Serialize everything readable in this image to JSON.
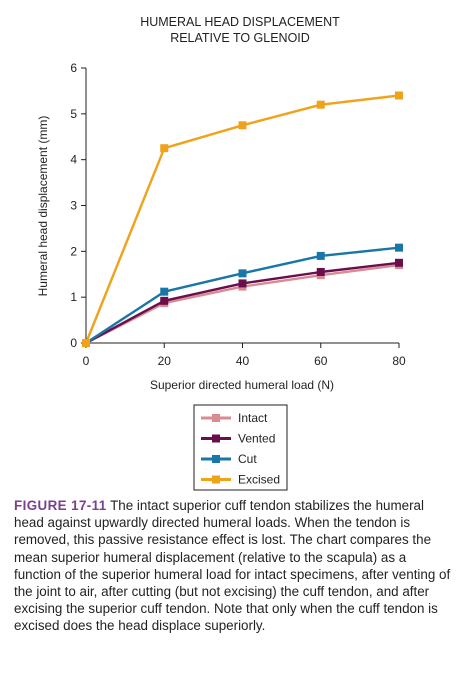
{
  "chart_data": {
    "type": "line",
    "title_lines": [
      "HUMERAL HEAD DISPLACEMENT",
      "RELATIVE TO GLENOID"
    ],
    "xlabel": "Superior directed humeral load (N)",
    "ylabel": "Humeral head displacement (mm)",
    "xlim": [
      0,
      80
    ],
    "ylim": [
      0,
      6
    ],
    "xticks": [
      "0",
      "20",
      "40",
      "60",
      "80"
    ],
    "yticks": [
      "0",
      "1",
      "2",
      "3",
      "4",
      "5",
      "6"
    ],
    "x": [
      0,
      20,
      40,
      60,
      80
    ],
    "legend_position": "bottom-center",
    "grid": false,
    "series": [
      {
        "name": "Intact",
        "color": "#d98a93",
        "values": [
          0,
          0.87,
          1.23,
          1.48,
          1.7
        ]
      },
      {
        "name": "Vented",
        "color": "#6a0f4c",
        "values": [
          0,
          0.92,
          1.3,
          1.55,
          1.75
        ]
      },
      {
        "name": "Cut",
        "color": "#1877a6",
        "values": [
          0,
          1.12,
          1.52,
          1.9,
          2.08
        ]
      },
      {
        "name": "Excised",
        "color": "#f0a21a",
        "values": [
          0,
          4.25,
          4.75,
          5.2,
          5.4
        ]
      }
    ]
  },
  "caption": {
    "label": "FIGURE 17-11",
    "text": " The intact superior cuff tendon stabilizes the humeral head against upwardly directed humeral loads. When the tendon is removed, this passive resistance effect is lost. The chart compares the mean superior humeral displacement (relative to the scapula) as a function of the superior humeral load for intact specimens, after venting of the joint to air, after cutting (but not excising) the cuff tendon, and after excising the superior cuff tendon. Note that only when the cuff tendon is excised does the head displace superiorly."
  }
}
